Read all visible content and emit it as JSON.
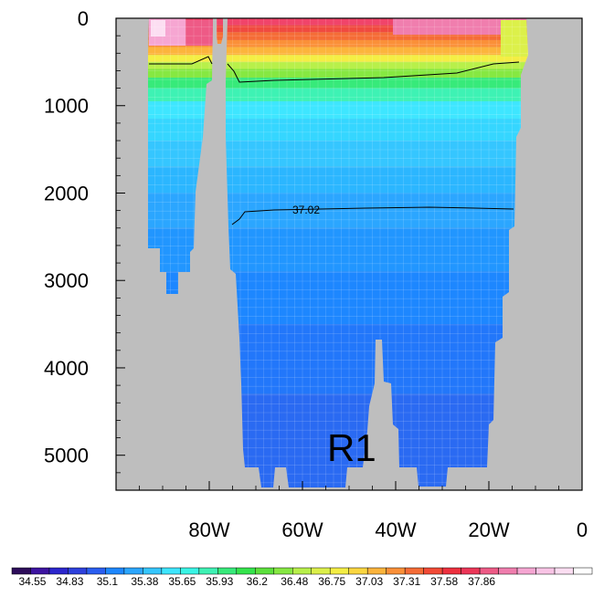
{
  "chart_data": {
    "type": "heatmap",
    "title": "",
    "xlabel": "",
    "ylabel": "",
    "x_ticks": [
      "80W",
      "60W",
      "40W",
      "20W",
      "0"
    ],
    "x_tick_values": [
      -80,
      -60,
      -40,
      -20,
      0
    ],
    "xlim": [
      -100,
      0
    ],
    "y_ticks": [
      "0",
      "1000",
      "2000",
      "3000",
      "4000",
      "5000"
    ],
    "y_tick_values": [
      0,
      1000,
      2000,
      3000,
      4000,
      5000
    ],
    "ylim": [
      0,
      5400
    ],
    "y_inverted": true,
    "land_color": "#bebebe",
    "annotation": "R1",
    "contours": [
      {
        "label": "",
        "level_depth_approx": 650
      },
      {
        "label": "37.02",
        "level_depth_approx": 2180
      }
    ],
    "colorbar": {
      "labels": [
        "34.55",
        "34.83",
        "35.1",
        "35.38",
        "35.65",
        "35.93",
        "36.2",
        "36.48",
        "36.75",
        "37.03",
        "37.31",
        "37.58",
        "37.86"
      ],
      "colors": [
        "#2d0c5a",
        "#3c13a0",
        "#2b25cc",
        "#2d40dc",
        "#2a5ef0",
        "#1d87ff",
        "#2ba6ff",
        "#35c6ff",
        "#3ee6ff",
        "#39f5e6",
        "#3ef2b4",
        "#37ea7a",
        "#34e44c",
        "#5ce03c",
        "#86e842",
        "#b8f04a",
        "#dcf04a",
        "#f4ee44",
        "#fbd640",
        "#fcb43c",
        "#fb9038",
        "#f56c36",
        "#f24a36",
        "#ee303e",
        "#ec3658",
        "#ee5a86",
        "#f07eae",
        "#f6a6d2",
        "#f9c4e6",
        "#fcdef2",
        "#ffffff"
      ]
    }
  }
}
